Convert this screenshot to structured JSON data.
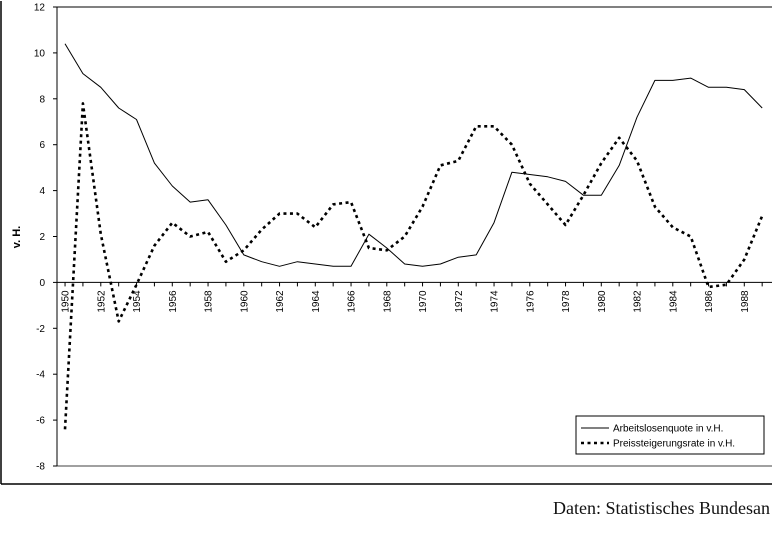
{
  "chart_data": {
    "type": "line",
    "title": "",
    "xlabel": "",
    "ylabel": "v. H.",
    "ylim": [
      -8,
      12
    ],
    "yticks": [
      "-8",
      "-6",
      "-4",
      "-2",
      "0",
      "2",
      "4",
      "6",
      "8",
      "10",
      "12"
    ],
    "xticks": [
      "1950",
      "1952",
      "1954",
      "1956",
      "1958",
      "1960",
      "1962",
      "1964",
      "1966",
      "1968",
      "1970",
      "1972",
      "1974",
      "1976",
      "1978",
      "1980",
      "1982",
      "1984",
      "1986",
      "1988"
    ],
    "x": [
      1950,
      1951,
      1952,
      1953,
      1954,
      1955,
      1956,
      1957,
      1958,
      1959,
      1960,
      1961,
      1962,
      1963,
      1964,
      1965,
      1966,
      1967,
      1968,
      1969,
      1970,
      1971,
      1972,
      1973,
      1974,
      1975,
      1976,
      1977,
      1978,
      1979,
      1980,
      1981,
      1982,
      1983,
      1984,
      1985,
      1986,
      1987,
      1988,
      1989
    ],
    "grid": false,
    "legend_position": "bottom-right",
    "series": [
      {
        "name": "Arbeitslosenquote in v.H.",
        "style": "solid",
        "color": "#000000",
        "values": [
          10.4,
          9.1,
          8.5,
          7.6,
          7.1,
          5.2,
          4.2,
          3.5,
          3.6,
          2.5,
          1.2,
          0.9,
          0.7,
          0.9,
          0.8,
          0.7,
          0.7,
          2.1,
          1.5,
          0.8,
          0.7,
          0.8,
          1.1,
          1.2,
          2.6,
          4.8,
          4.7,
          4.6,
          4.4,
          3.8,
          3.8,
          5.1,
          7.2,
          8.8,
          8.8,
          8.9,
          8.5,
          8.5,
          8.4,
          7.6
        ]
      },
      {
        "name": "Preissteigerungsrate in v.H.",
        "style": "dashed",
        "color": "#000000",
        "values": [
          -6.4,
          7.8,
          2.1,
          -1.7,
          -0.1,
          1.6,
          2.6,
          2.0,
          2.2,
          0.9,
          1.4,
          2.3,
          3.0,
          3.0,
          2.4,
          3.4,
          3.5,
          1.5,
          1.4,
          2.0,
          3.3,
          5.1,
          5.3,
          6.8,
          6.8,
          6.0,
          4.3,
          3.4,
          2.5,
          3.8,
          5.2,
          6.3,
          5.3,
          3.3,
          2.4,
          2.0,
          -0.2,
          -0.1,
          1.0,
          2.9
        ]
      }
    ]
  },
  "source_note": "Daten: Statistisches Bundesan"
}
